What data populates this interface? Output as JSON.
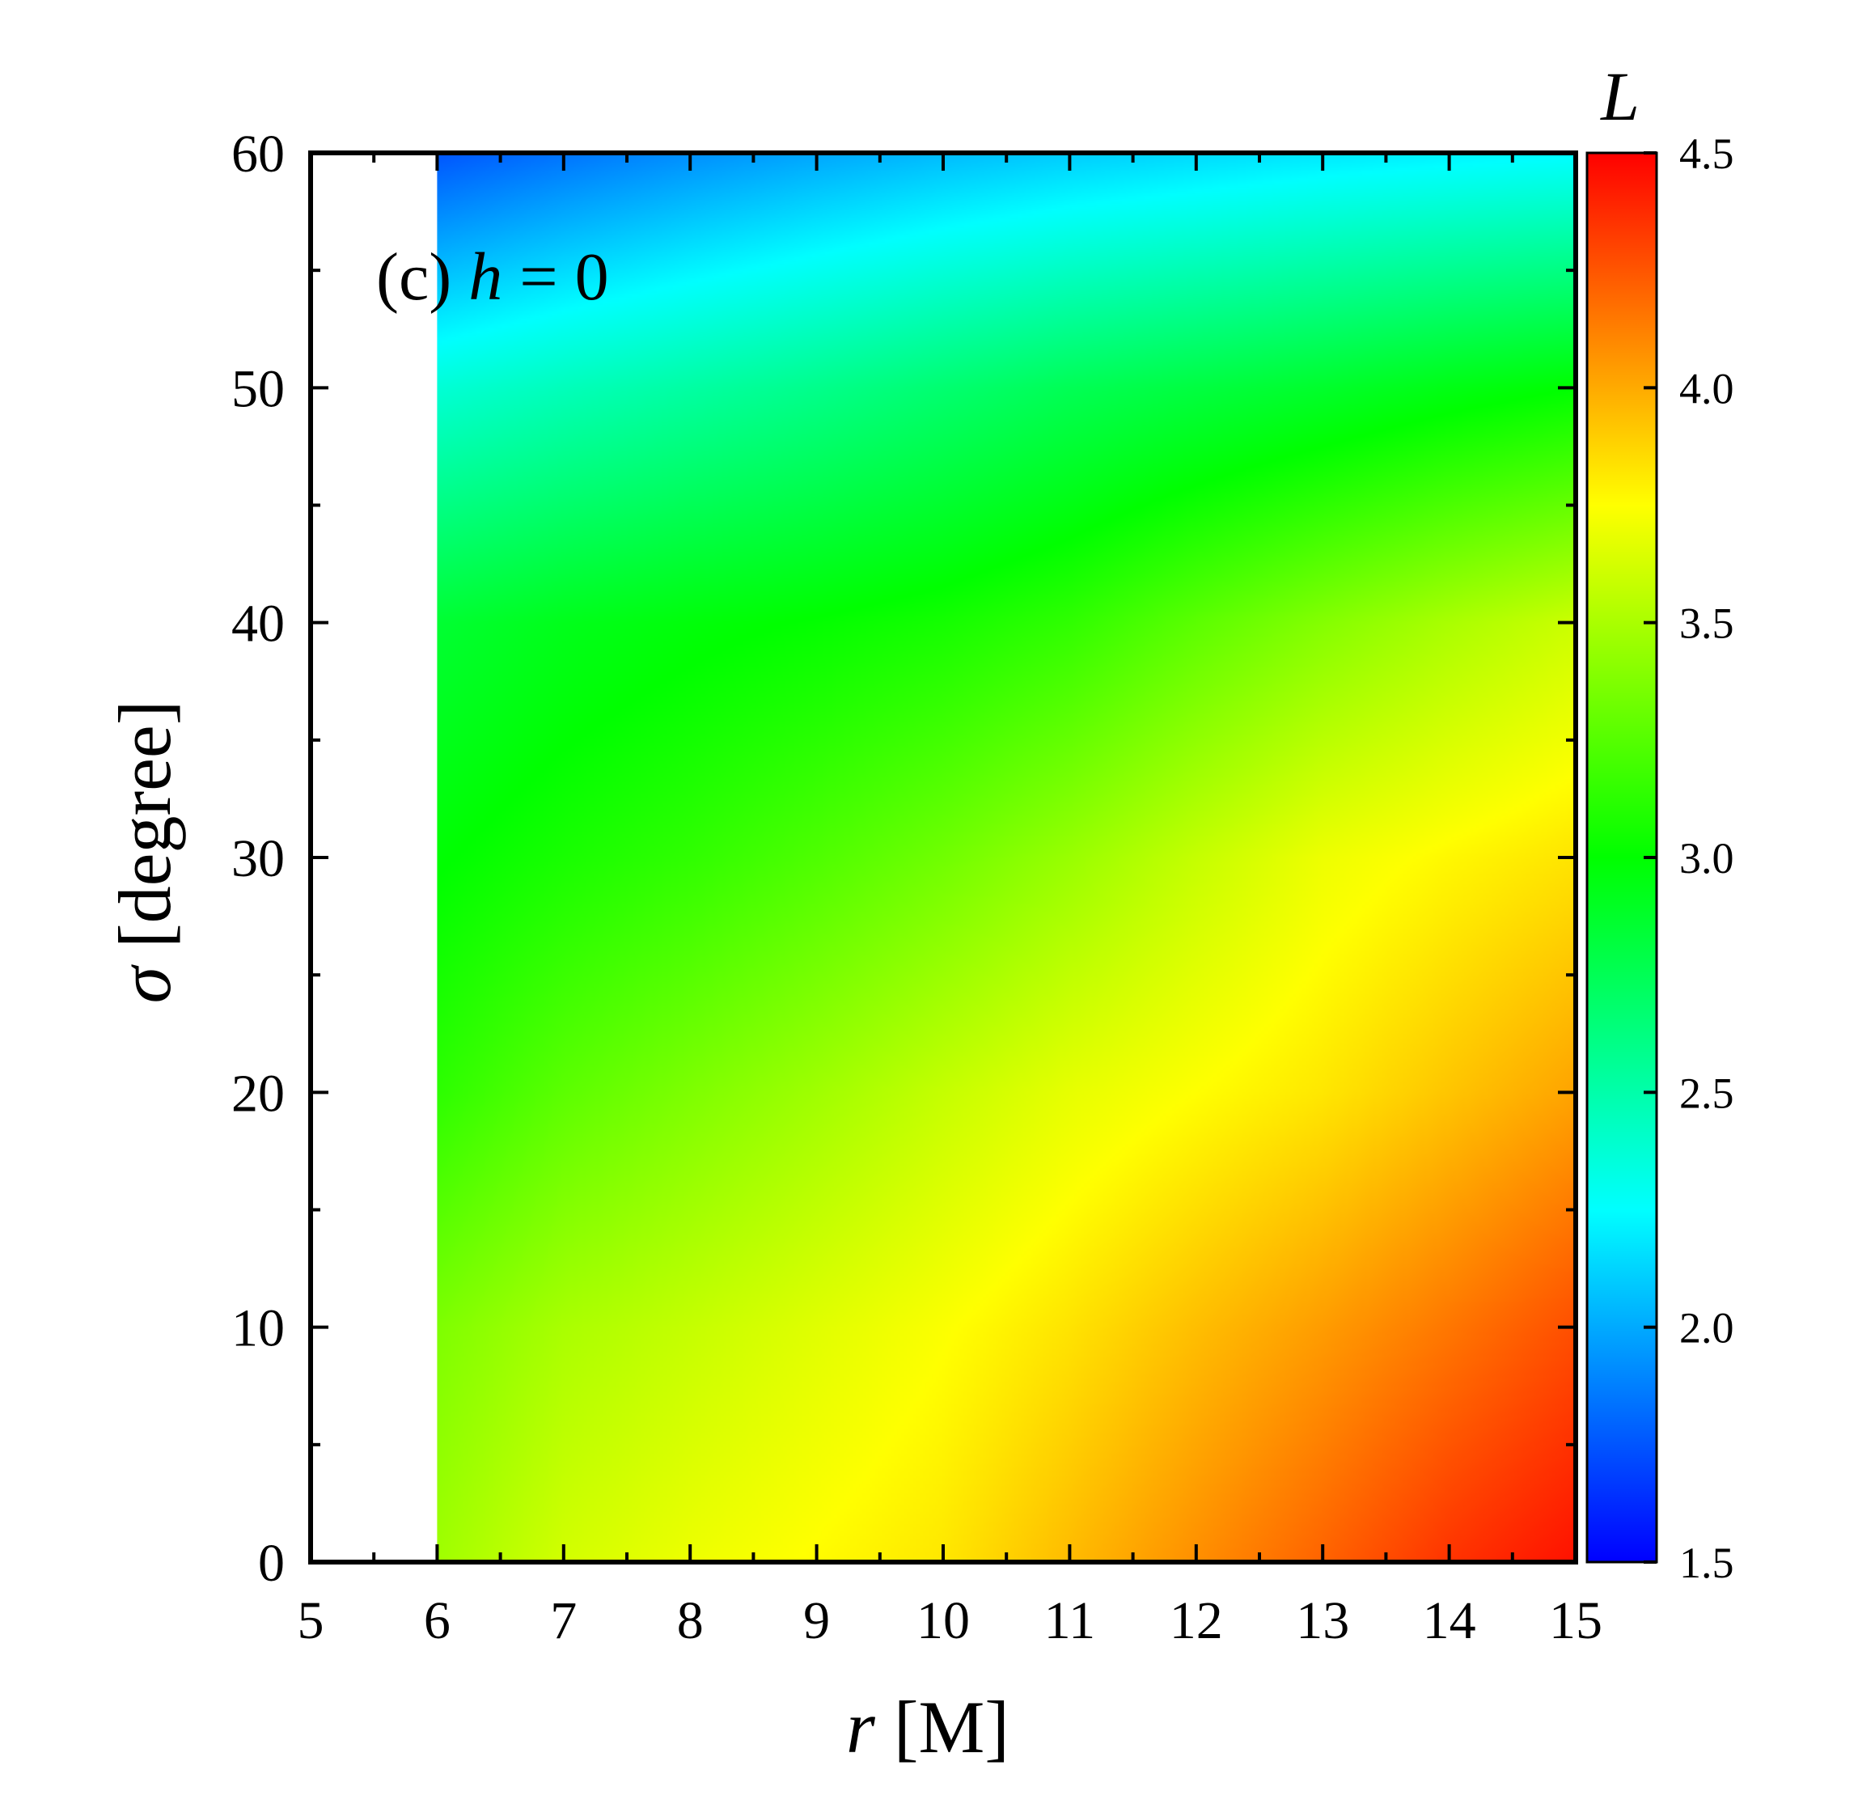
{
  "chart_data": {
    "type": "heatmap",
    "title": "",
    "panel_label": {
      "prefix": "(c) ",
      "var": "h",
      "rest": " = 0"
    },
    "xlabel": {
      "var": "r",
      "unit": " [M]"
    },
    "ylabel": {
      "var": "σ",
      "unit": " [degree]"
    },
    "xlim": [
      5,
      15
    ],
    "ylim": [
      0,
      60
    ],
    "x_ticks": [
      "5",
      "6",
      "7",
      "8",
      "9",
      "10",
      "11",
      "12",
      "13",
      "14",
      "15"
    ],
    "y_ticks": [
      "0",
      "10",
      "20",
      "30",
      "40",
      "50",
      "60"
    ],
    "data_region": {
      "x_min": 6,
      "x_max": 15,
      "y_min": 0,
      "y_max": 60
    },
    "colorbar": {
      "title": "L",
      "range": [
        1.5,
        4.5
      ],
      "ticks": [
        "1.5",
        "2.0",
        "2.5",
        "3.0",
        "3.5",
        "4.0",
        "4.5"
      ],
      "colormap": [
        {
          "value": 1.5,
          "color": "#0000ff"
        },
        {
          "value": 2.25,
          "color": "#00ffff"
        },
        {
          "value": 3.0,
          "color": "#00ff00"
        },
        {
          "value": 3.75,
          "color": "#ffff00"
        },
        {
          "value": 4.5,
          "color": "#ff0000"
        }
      ]
    },
    "grid": false,
    "samples": {
      "x": [
        6,
        7,
        8,
        9,
        10,
        11,
        12,
        13,
        14,
        15
      ],
      "y": [
        0,
        10,
        20,
        30,
        40,
        50,
        60
      ],
      "z": [
        [
          3.47,
          3.62,
          3.7,
          3.76,
          3.82,
          3.95,
          4.08,
          4.21,
          4.35,
          4.45
        ],
        [
          3.37,
          3.5,
          3.58,
          3.66,
          3.74,
          3.83,
          3.94,
          4.04,
          4.15,
          4.27
        ],
        [
          3.13,
          3.27,
          3.37,
          3.47,
          3.58,
          3.68,
          3.75,
          3.82,
          3.92,
          4.02
        ],
        [
          2.99,
          3.07,
          3.14,
          3.23,
          3.33,
          3.45,
          3.58,
          3.7,
          3.77,
          3.83
        ],
        [
          2.85,
          2.92,
          2.97,
          3.01,
          3.06,
          3.14,
          3.27,
          3.39,
          3.5,
          3.6
        ],
        [
          2.37,
          2.45,
          2.52,
          2.59,
          2.67,
          2.75,
          2.81,
          2.87,
          2.94,
          3.0
        ],
        [
          1.75,
          1.84,
          1.92,
          1.99,
          2.05,
          2.1,
          2.14,
          2.18,
          2.21,
          2.24
        ]
      ]
    }
  }
}
